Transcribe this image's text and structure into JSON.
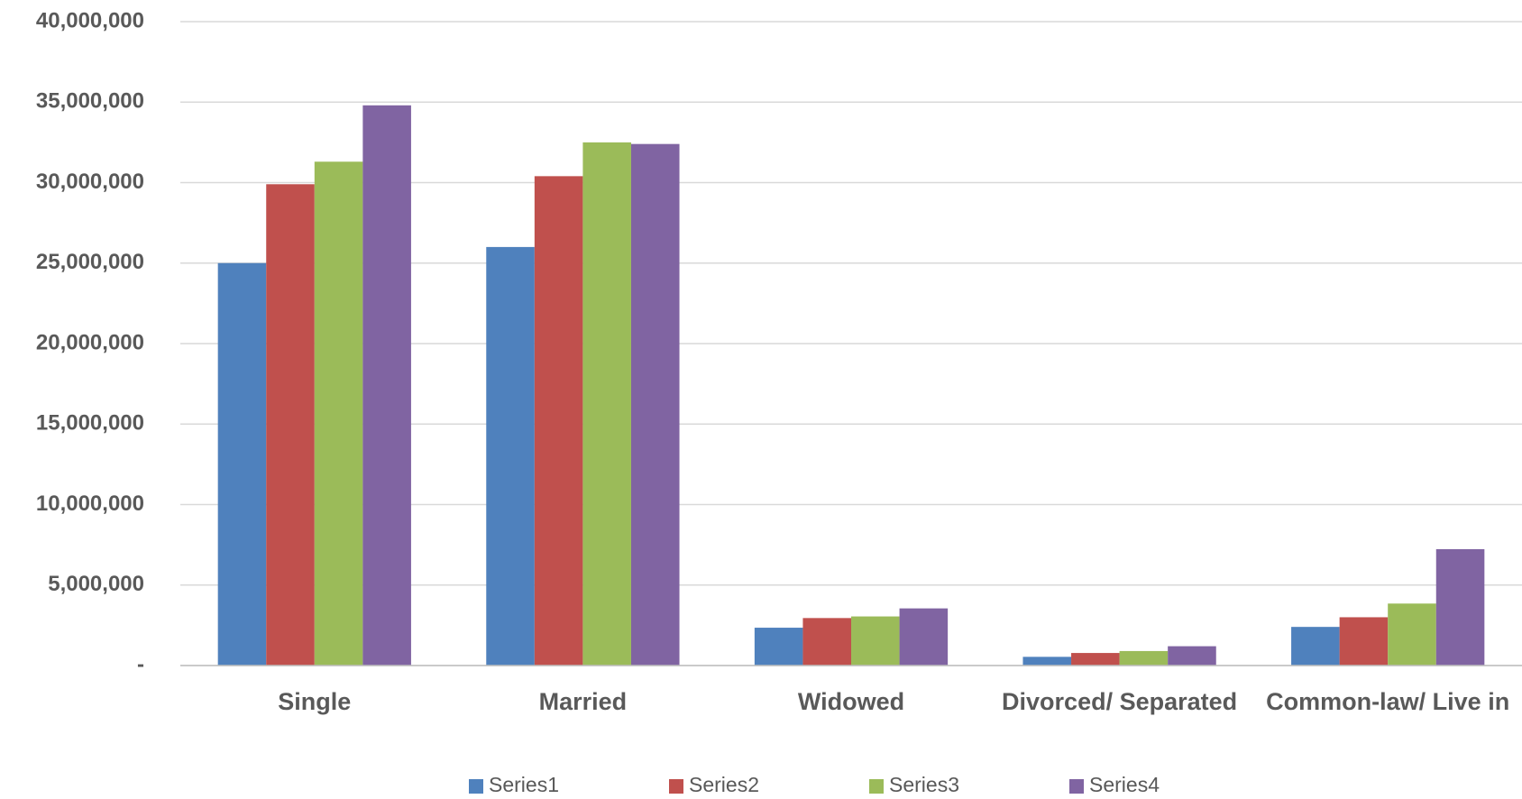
{
  "chart_data": {
    "type": "bar",
    "categories": [
      "Single",
      "Married",
      "Widowed",
      "Divorced/ Separated",
      "Common-law/ Live in"
    ],
    "series": [
      {
        "name": "Series1",
        "color": "#4f81bd",
        "values": [
          25000000,
          26000000,
          2350000,
          540000,
          2400000
        ]
      },
      {
        "name": "Series2",
        "color": "#c0504d",
        "values": [
          29900000,
          30400000,
          2950000,
          780000,
          3000000
        ]
      },
      {
        "name": "Series3",
        "color": "#9bbb59",
        "values": [
          31300000,
          32500000,
          3050000,
          900000,
          3850000
        ]
      },
      {
        "name": "Series4",
        "color": "#8064a2",
        "values": [
          34800000,
          32400000,
          3550000,
          1200000,
          7230000
        ]
      }
    ],
    "ylim": [
      0,
      40000000
    ],
    "yticks": [
      {
        "value": 0,
        "label": "-"
      },
      {
        "value": 5000000,
        "label": "5,000,000"
      },
      {
        "value": 10000000,
        "label": "10,000,000"
      },
      {
        "value": 15000000,
        "label": "15,000,000"
      },
      {
        "value": 20000000,
        "label": "20,000,000"
      },
      {
        "value": 25000000,
        "label": "25,000,000"
      },
      {
        "value": 30000000,
        "label": "30,000,000"
      },
      {
        "value": 35000000,
        "label": "35,000,000"
      },
      {
        "value": 40000000,
        "label": "40,000,000"
      }
    ],
    "grid": true,
    "legend": "bottom"
  }
}
